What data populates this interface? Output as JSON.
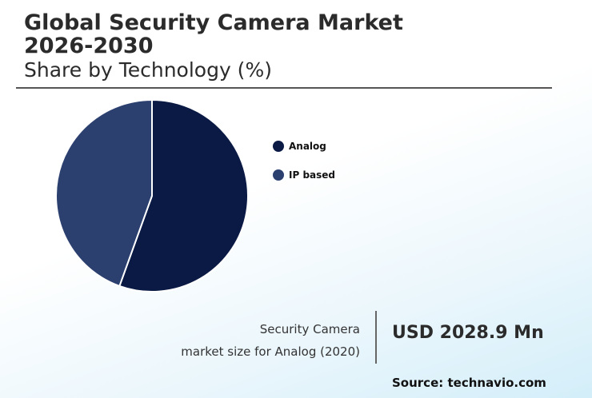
{
  "header": {
    "title": "Global Security Camera Market 2026-2030",
    "subtitle": "Share by Technology (%)"
  },
  "chart_data": {
    "type": "pie",
    "title": "Global Security Camera Market 2026-2030",
    "subtitle": "Share by Technology (%)",
    "categories": [
      "Analog",
      "IP based"
    ],
    "values": [
      55.5,
      44.5
    ],
    "colors": [
      "#0a1a44",
      "#2c4070"
    ],
    "start_angle_deg": 0,
    "legend_position": "right"
  },
  "callout": {
    "label_line1": "Security Camera",
    "label_line2": "market size for Analog (2020)",
    "value": "USD 2028.9 Mn"
  },
  "source": "Source: technavio.com"
}
